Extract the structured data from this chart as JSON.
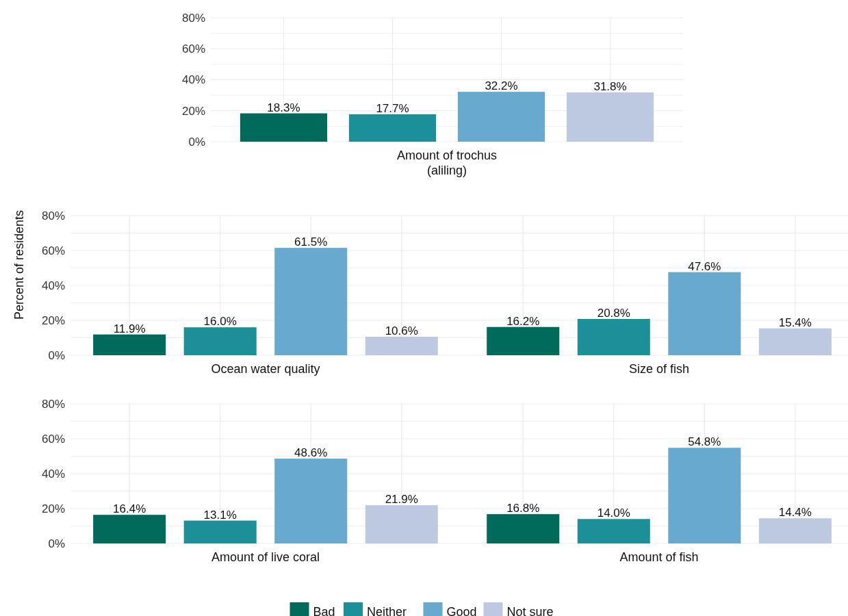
{
  "chart_data": [
    {
      "type": "bar",
      "categories": [
        "Amount of trochus\n(aliling)"
      ],
      "ylim": [
        0,
        80
      ],
      "yticks": [
        {
          "value": 0,
          "label": "0%"
        },
        {
          "value": 10,
          "label": null
        },
        {
          "value": 20,
          "label": "20%"
        },
        {
          "value": 30,
          "label": null
        },
        {
          "value": 40,
          "label": "40%"
        },
        {
          "value": 50,
          "label": null
        },
        {
          "value": 60,
          "label": "60%"
        },
        {
          "value": 70,
          "label": null
        },
        {
          "value": 80,
          "label": "80%"
        }
      ],
      "grid": true,
      "series": [
        {
          "color": "#006b5a",
          "values": [
            18.3
          ],
          "value_labels": [
            "18.3%"
          ]
        },
        {
          "color": "#1b9099",
          "values": [
            17.7
          ],
          "value_labels": [
            "17.7%"
          ]
        },
        {
          "color": "#67a9cf",
          "values": [
            32.2
          ],
          "value_labels": [
            "32.2%"
          ]
        },
        {
          "color": "#bdc9e1",
          "values": [
            31.8
          ],
          "value_labels": [
            "31.8%"
          ]
        }
      ]
    },
    {
      "type": "bar",
      "ylabel": "Percent of residents",
      "categories": [
        "Ocean water quality",
        "Size of fish"
      ],
      "ylim": [
        0,
        80
      ],
      "yticks": [
        {
          "value": 0,
          "label": "0%"
        },
        {
          "value": 10,
          "label": null
        },
        {
          "value": 20,
          "label": "20%"
        },
        {
          "value": 30,
          "label": null
        },
        {
          "value": 40,
          "label": "40%"
        },
        {
          "value": 50,
          "label": null
        },
        {
          "value": 60,
          "label": "60%"
        },
        {
          "value": 70,
          "label": null
        },
        {
          "value": 80,
          "label": "80%"
        }
      ],
      "grid": true,
      "series": [
        {
          "color": "#006b5a",
          "values": [
            11.9,
            16.2
          ],
          "value_labels": [
            "11.9%",
            "16.2%"
          ]
        },
        {
          "color": "#1b9099",
          "values": [
            16.0,
            20.8
          ],
          "value_labels": [
            "16.0%",
            "20.8%"
          ]
        },
        {
          "color": "#67a9cf",
          "values": [
            61.5,
            47.6
          ],
          "value_labels": [
            "61.5%",
            "47.6%"
          ]
        },
        {
          "color": "#bdc9e1",
          "values": [
            10.6,
            15.4
          ],
          "value_labels": [
            "10.6%",
            "15.4%"
          ]
        }
      ]
    },
    {
      "type": "bar",
      "categories": [
        "Amount of live coral",
        "Amount of fish"
      ],
      "ylim": [
        0,
        80
      ],
      "yticks": [
        {
          "value": 0,
          "label": "0%"
        },
        {
          "value": 10,
          "label": null
        },
        {
          "value": 20,
          "label": "20%"
        },
        {
          "value": 30,
          "label": null
        },
        {
          "value": 40,
          "label": "40%"
        },
        {
          "value": 50,
          "label": null
        },
        {
          "value": 60,
          "label": "60%"
        },
        {
          "value": 70,
          "label": null
        },
        {
          "value": 80,
          "label": "80%"
        }
      ],
      "grid": true,
      "legend": "bottom",
      "series": [
        {
          "name": "Bad",
          "color": "#006b5a",
          "values": [
            16.4,
            16.8
          ],
          "value_labels": [
            "16.4%",
            "16.8%"
          ]
        },
        {
          "name": "Neither",
          "color": "#1b9099",
          "values": [
            13.1,
            14.0
          ],
          "value_labels": [
            "13.1%",
            "14.0%"
          ]
        },
        {
          "name": "Good",
          "color": "#67a9cf",
          "values": [
            48.6,
            54.8
          ],
          "value_labels": [
            "48.6%",
            "54.8%"
          ]
        },
        {
          "name": "Not sure",
          "color": "#bdc9e1",
          "values": [
            21.9,
            14.4
          ],
          "value_labels": [
            "21.9%",
            "14.4%"
          ]
        }
      ]
    }
  ]
}
